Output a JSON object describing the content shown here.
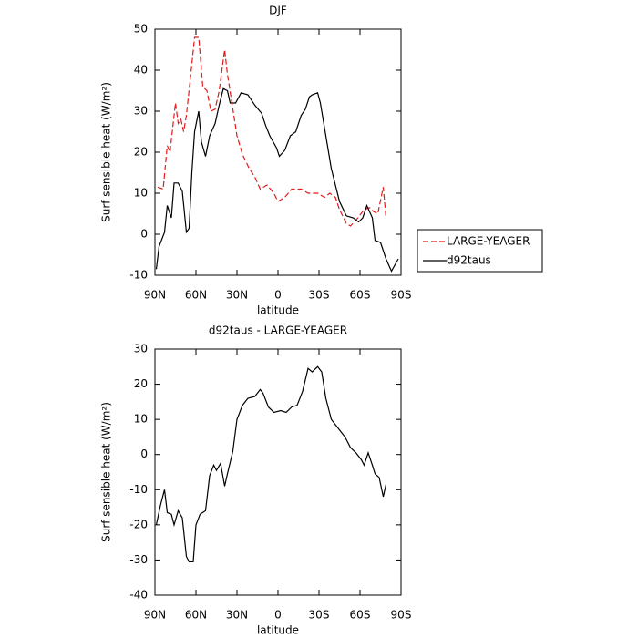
{
  "chart_data": [
    {
      "type": "line",
      "title": "DJF",
      "xlabel": "latitude",
      "ylabel": "Surf sensible heat (W/m²)",
      "xlim": [
        90,
        -90
      ],
      "xticks": [
        {
          "value": 90,
          "label": "90N"
        },
        {
          "value": 60,
          "label": "60N"
        },
        {
          "value": 30,
          "label": "30N"
        },
        0,
        {
          "value": -30,
          "label": "30S"
        },
        {
          "value": -60,
          "label": "60S"
        },
        {
          "value": -90,
          "label": "90S"
        }
      ],
      "ylim": [
        -10,
        50
      ],
      "yticks": [
        -10,
        0,
        10,
        20,
        30,
        40,
        50
      ],
      "legend": "right",
      "series": [
        {
          "name": "LARGE-YEAGER",
          "color": "#e41a1c",
          "dash": true,
          "x": [
            88,
            84,
            81,
            79,
            75,
            73,
            71,
            69,
            67,
            63,
            61,
            58,
            55,
            52,
            49,
            46,
            43,
            39,
            37,
            33,
            30,
            26,
            21,
            17,
            13,
            8,
            3,
            0,
            -5,
            -10,
            -17,
            -22,
            -29,
            -34,
            -38,
            -42,
            -45,
            -50,
            -53,
            -58,
            -63,
            -67,
            -70,
            -73,
            -77,
            -79
          ],
          "values": [
            11.5,
            11,
            21.6,
            20,
            32,
            27,
            28,
            25,
            29,
            41.5,
            48,
            48,
            36,
            35,
            30,
            30.5,
            35,
            45,
            39,
            30.5,
            24,
            19.5,
            16,
            14,
            11,
            12,
            10,
            8,
            9,
            11,
            11,
            10,
            10,
            9,
            10,
            9,
            6,
            2.7,
            2,
            3.8,
            6,
            6.5,
            5.5,
            5,
            11.5,
            4
          ]
        },
        {
          "name": "d92taus",
          "color": "#000000",
          "dash": false,
          "x": [
            89,
            87,
            83,
            81,
            78,
            76,
            73,
            70,
            67,
            65,
            63,
            61,
            58,
            56,
            53,
            50,
            46,
            43,
            40,
            37,
            35,
            31,
            27,
            22,
            17,
            12,
            9,
            6,
            1,
            -1,
            -5,
            -9,
            -13,
            -17,
            -20,
            -23,
            -25,
            -29,
            -31,
            -35,
            -39,
            -45,
            -50,
            -55,
            -59,
            -62,
            -65,
            -69,
            -71,
            -75,
            -79,
            -83,
            -88
          ],
          "values": [
            -8.5,
            -3,
            0.5,
            7,
            4,
            12.5,
            12.5,
            10.5,
            0.5,
            1.5,
            15,
            25,
            30,
            22.5,
            19,
            24,
            27,
            31.5,
            35.5,
            35,
            32,
            32,
            34.5,
            34,
            31.5,
            29.5,
            26.5,
            24,
            21,
            19,
            20.5,
            24,
            25,
            29,
            30.5,
            33.5,
            34,
            34.5,
            32,
            24,
            16,
            8,
            4.5,
            4,
            3,
            4,
            7,
            4,
            -1.5,
            -2,
            -6,
            -9,
            -6
          ]
        }
      ]
    },
    {
      "type": "line",
      "title": "d92taus - LARGE-YEAGER",
      "xlabel": "latitude",
      "ylabel": "Surf sensible heat (W/m²)",
      "xlim": [
        90,
        -90
      ],
      "xticks": [
        {
          "value": 90,
          "label": "90N"
        },
        {
          "value": 60,
          "label": "60N"
        },
        {
          "value": 30,
          "label": "30N"
        },
        0,
        {
          "value": -30,
          "label": "30S"
        },
        {
          "value": -60,
          "label": "60S"
        },
        {
          "value": -90,
          "label": "90S"
        }
      ],
      "ylim": [
        -40,
        30
      ],
      "yticks": [
        -40,
        -30,
        -20,
        -10,
        0,
        10,
        20,
        30
      ],
      "series": [
        {
          "color": "#000000",
          "dash": false,
          "x": [
            89,
            86,
            83,
            81,
            78,
            76,
            73,
            70,
            67,
            65,
            62,
            60,
            57,
            53,
            50,
            47,
            45,
            42,
            39,
            37,
            33,
            30,
            26,
            22,
            17,
            13,
            11,
            7,
            3,
            -2,
            -6,
            -10,
            -14,
            -18,
            -22,
            -25,
            -29,
            -32,
            -35,
            -39,
            -45,
            -49,
            -53,
            -57,
            -61,
            -63,
            -66,
            -69,
            -71,
            -74,
            -77,
            -79
          ],
          "values": [
            -20,
            -14.5,
            -10,
            -16.5,
            -17,
            -20,
            -16,
            -18,
            -29,
            -30.5,
            -30.5,
            -20,
            -17,
            -16,
            -6,
            -3,
            -4.5,
            -2.5,
            -9,
            -5.5,
            1,
            10,
            14,
            16,
            16.5,
            18.5,
            17.5,
            13.5,
            12,
            12.5,
            12,
            13.5,
            14,
            18,
            24.5,
            23.5,
            25,
            23.5,
            16,
            10,
            7,
            5,
            2,
            0.5,
            -1.5,
            -3,
            0.5,
            -3,
            -5.5,
            -6.5,
            -12,
            -8.5
          ]
        }
      ]
    }
  ]
}
